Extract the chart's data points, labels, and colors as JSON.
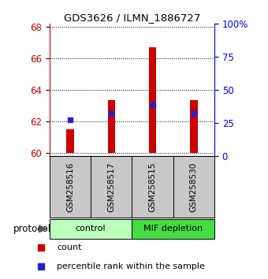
{
  "title": "GDS3626 / ILMN_1886727",
  "samples": [
    "GSM258516",
    "GSM258517",
    "GSM258515",
    "GSM258530"
  ],
  "count_values": [
    61.5,
    63.35,
    66.7,
    63.35
  ],
  "percentile_values": [
    62.1,
    62.52,
    63.05,
    62.52
  ],
  "ylim_left": [
    59.8,
    68.2
  ],
  "ylim_right": [
    0,
    100
  ],
  "yticks_left": [
    60,
    62,
    64,
    66,
    68
  ],
  "yticks_right": [
    0,
    25,
    50,
    75,
    100
  ],
  "ytick_labels_right": [
    "0",
    "25",
    "50",
    "75",
    "100%"
  ],
  "bar_bottom": 60.0,
  "red_color": "#cc0000",
  "blue_color": "#2222cc",
  "bar_width": 0.18,
  "legend_red": "count",
  "legend_blue": "percentile rank within the sample",
  "protocol_label": "protocol",
  "control_color": "#bbffbb",
  "mif_color": "#44dd44",
  "sample_box_color": "#c8c8c8"
}
